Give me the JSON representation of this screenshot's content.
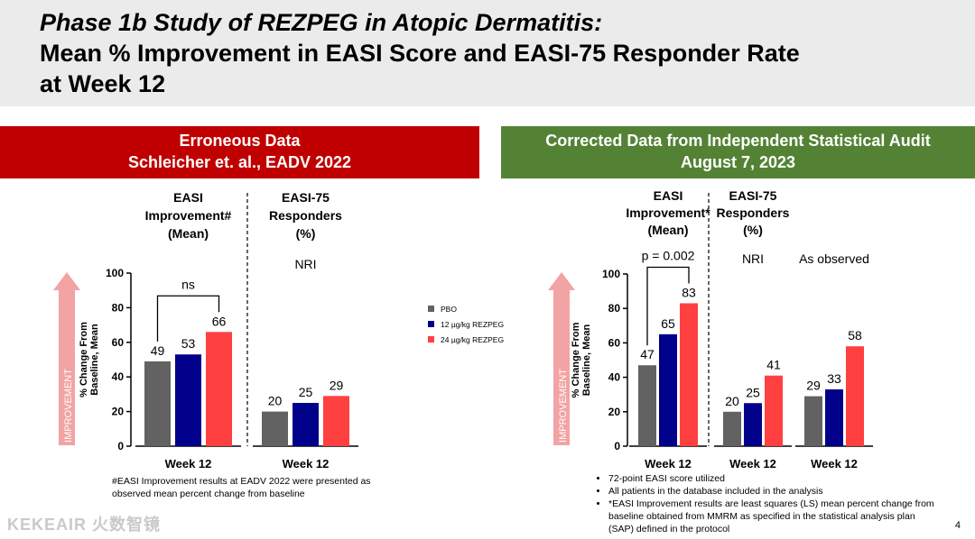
{
  "title": {
    "line1": "Phase 1b Study of REZPEG in Atopic Dermatitis:",
    "line2": "Mean % Improvement in EASI Score and EASI-75 Responder Rate",
    "line3": "at Week 12"
  },
  "left_banner": {
    "line1": "Erroneous Data",
    "line2": "Schleicher et. al., EADV 2022"
  },
  "right_banner": {
    "line1": "Corrected Data from Independent Statistical Audit",
    "line2": "August 7, 2023"
  },
  "arrow_label": "IMPROVEMENT",
  "legend": [
    {
      "label": "PBO",
      "color": "#626262"
    },
    {
      "label": "12 µg/kg REZPEG",
      "color": "#00008b"
    },
    {
      "label": "24 µg/kg REZPEG",
      "color": "#ff4040"
    }
  ],
  "left_footnote": "#EASI Improvement results at EADV 2022 were presented as observed mean percent change from baseline",
  "right_footnotes": [
    "72-point EASI score utilized",
    "All patients in the database included in the analysis",
    "*EASI Improvement results are least squares (LS) mean percent change from baseline obtained from MMRM as specified in the statistical analysis plan (SAP) defined in the protocol"
  ],
  "page_number": "4",
  "watermark": "KEKEAIR 火数智镜",
  "chart_data": [
    {
      "type": "bar",
      "title": "Erroneous Data",
      "ylabel_line1": "% Change From",
      "ylabel_line2": "Baseline, Mean",
      "ylim": [
        0,
        100
      ],
      "yticks": [
        0,
        20,
        40,
        60,
        80,
        100
      ],
      "series_names": [
        "PBO",
        "12 µg/kg REZPEG",
        "24 µg/kg REZPEG"
      ],
      "series_colors": [
        "#626262",
        "#00008b",
        "#ff4040"
      ],
      "groups": [
        {
          "header": [
            "EASI",
            "Improvement#",
            "(Mean)"
          ],
          "sublabel": "",
          "xlabel": "Week 12",
          "values": [
            49,
            53,
            66
          ],
          "annotation": "ns"
        },
        {
          "header": [
            "EASI-75",
            "Responders",
            "(%)"
          ],
          "sublabel": "NRI",
          "xlabel": "Week 12",
          "values": [
            20,
            25,
            29
          ],
          "annotation": ""
        }
      ]
    },
    {
      "type": "bar",
      "title": "Corrected Data from Independent Statistical Audit",
      "ylabel_line1": "% Change From",
      "ylabel_line2": "Baseline, Mean",
      "ylim": [
        0,
        100
      ],
      "yticks": [
        0,
        20,
        40,
        60,
        80,
        100
      ],
      "series_names": [
        "PBO",
        "12 µg/kg REZPEG",
        "24 µg/kg REZPEG"
      ],
      "series_colors": [
        "#626262",
        "#00008b",
        "#ff4040"
      ],
      "groups": [
        {
          "header": [
            "EASI",
            "Improvement*",
            "(Mean)"
          ],
          "sublabel": "",
          "xlabel": "Week 12",
          "values": [
            47,
            65,
            83
          ],
          "annotation": "p = 0.002"
        },
        {
          "header": [
            "EASI-75",
            "Responders",
            "(%)"
          ],
          "sublabel": "NRI",
          "xlabel": "Week 12",
          "values": [
            20,
            25,
            41
          ],
          "annotation": ""
        },
        {
          "header": [],
          "sublabel": "As observed",
          "xlabel": "Week 12",
          "values": [
            29,
            33,
            58
          ],
          "annotation": ""
        }
      ]
    }
  ]
}
